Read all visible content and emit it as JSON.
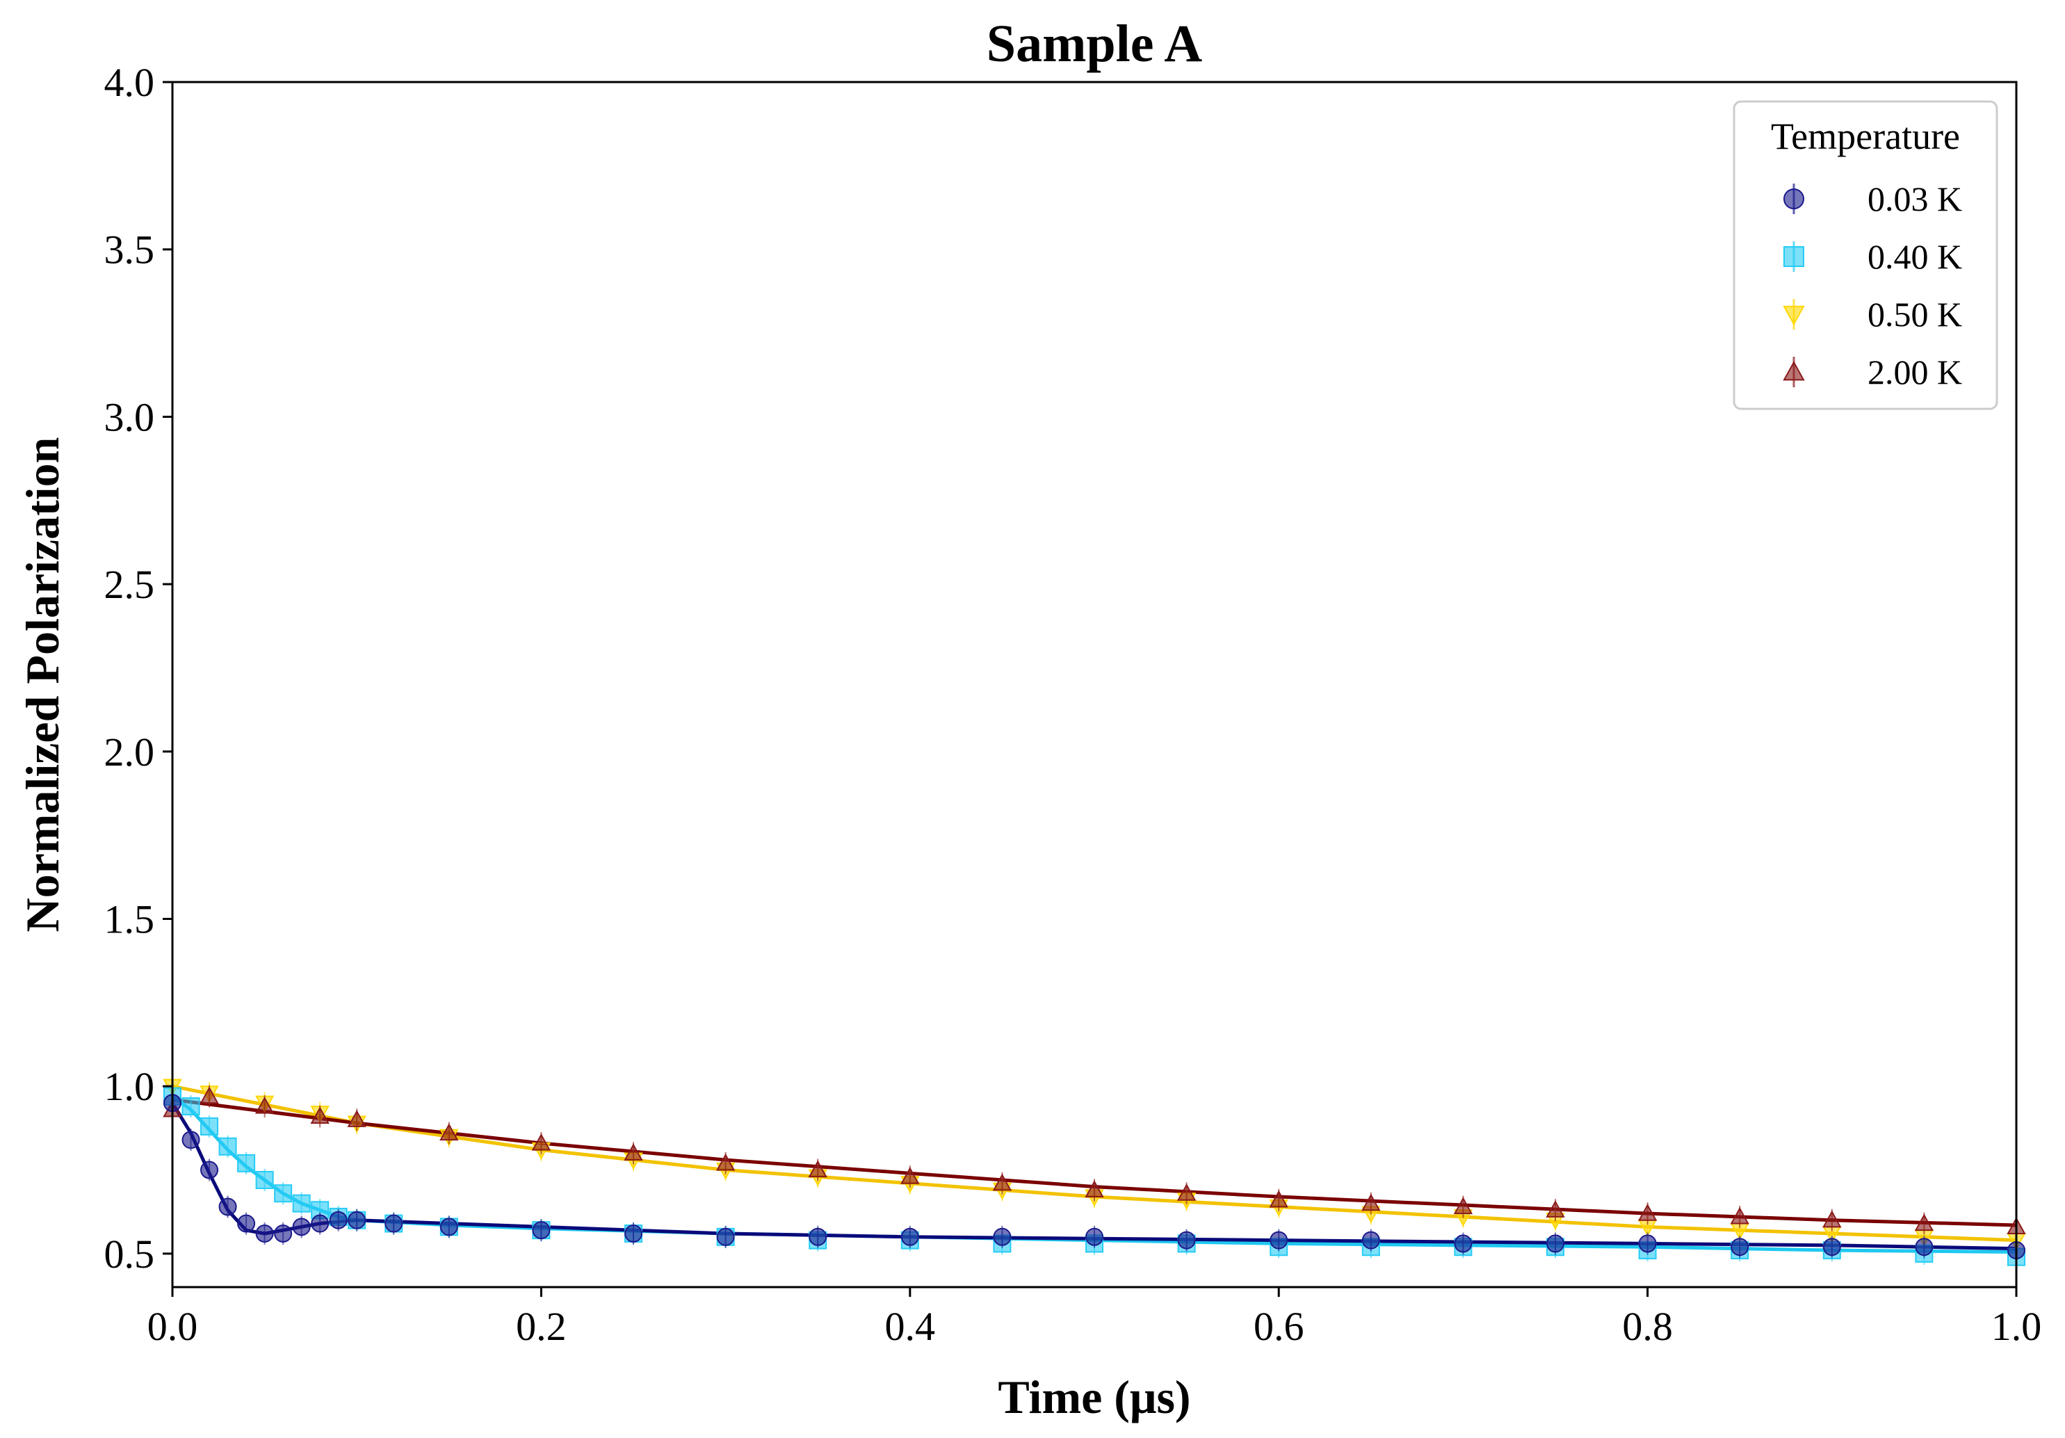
{
  "chart_data": {
    "type": "scatter",
    "title": "Sample A",
    "xlabel": "Time (μs)",
    "ylabel": "Normalized Polarization",
    "xlim": [
      0.0,
      1.0
    ],
    "ylim": [
      0.4,
      4.0
    ],
    "xticks": [
      0.0,
      0.2,
      0.4,
      0.6,
      0.8,
      1.0
    ],
    "xtick_labels": [
      "0.0",
      "0.2",
      "0.4",
      "0.6",
      "0.8",
      "1.0"
    ],
    "yticks": [
      0.5,
      1.0,
      1.5,
      2.0,
      2.5,
      3.0,
      3.5,
      4.0
    ],
    "ytick_labels": [
      "0.5",
      "1.0",
      "1.5",
      "2.0",
      "2.5",
      "3.0",
      "3.5",
      "4.0"
    ],
    "grid": false,
    "legend": {
      "title": "Temperature",
      "placement": "top-right"
    },
    "series": [
      {
        "name": "0.03 K",
        "marker": "circle",
        "color": "#1a1a8c",
        "fit_color": "#0a0a7a",
        "x": [
          0.0,
          0.01,
          0.02,
          0.03,
          0.04,
          0.05,
          0.06,
          0.07,
          0.08,
          0.09,
          0.1,
          0.12,
          0.15,
          0.2,
          0.25,
          0.3,
          0.35,
          0.4,
          0.45,
          0.5,
          0.55,
          0.6,
          0.65,
          0.7,
          0.75,
          0.8,
          0.85,
          0.9,
          0.95,
          1.0
        ],
        "y": [
          0.95,
          0.84,
          0.75,
          0.64,
          0.59,
          0.56,
          0.56,
          0.58,
          0.59,
          0.6,
          0.6,
          0.59,
          0.58,
          0.57,
          0.56,
          0.55,
          0.55,
          0.55,
          0.55,
          0.55,
          0.54,
          0.54,
          0.54,
          0.53,
          0.53,
          0.53,
          0.52,
          0.52,
          0.52,
          0.51
        ],
        "fit_x": [
          0.0,
          0.01,
          0.02,
          0.03,
          0.04,
          0.05,
          0.06,
          0.08,
          0.1,
          0.15,
          0.2,
          0.3,
          0.4,
          0.5,
          0.6,
          0.7,
          0.8,
          0.9,
          1.0
        ],
        "fit_y": [
          0.95,
          0.86,
          0.74,
          0.63,
          0.57,
          0.56,
          0.57,
          0.59,
          0.6,
          0.59,
          0.58,
          0.56,
          0.55,
          0.545,
          0.54,
          0.535,
          0.53,
          0.525,
          0.515
        ]
      },
      {
        "name": "0.40 K",
        "marker": "square",
        "color": "#27ccf5",
        "fit_color": "#1fc8f0",
        "x": [
          0.0,
          0.01,
          0.02,
          0.03,
          0.04,
          0.05,
          0.06,
          0.07,
          0.08,
          0.09,
          0.1,
          0.12,
          0.15,
          0.2,
          0.25,
          0.3,
          0.35,
          0.4,
          0.45,
          0.5,
          0.55,
          0.6,
          0.65,
          0.7,
          0.75,
          0.8,
          0.85,
          0.9,
          0.95,
          1.0
        ],
        "y": [
          0.97,
          0.94,
          0.88,
          0.82,
          0.77,
          0.72,
          0.68,
          0.65,
          0.63,
          0.61,
          0.6,
          0.59,
          0.58,
          0.57,
          0.56,
          0.55,
          0.54,
          0.54,
          0.53,
          0.53,
          0.53,
          0.52,
          0.52,
          0.52,
          0.52,
          0.51,
          0.51,
          0.51,
          0.5,
          0.49
        ],
        "fit_x": [
          0.0,
          0.01,
          0.02,
          0.03,
          0.04,
          0.05,
          0.06,
          0.07,
          0.08,
          0.09,
          0.1,
          0.15,
          0.2,
          0.3,
          0.4,
          0.5,
          0.6,
          0.7,
          0.8,
          0.9,
          1.0
        ],
        "fit_y": [
          0.97,
          0.93,
          0.87,
          0.81,
          0.76,
          0.72,
          0.68,
          0.65,
          0.63,
          0.61,
          0.6,
          0.585,
          0.575,
          0.56,
          0.55,
          0.54,
          0.53,
          0.525,
          0.52,
          0.51,
          0.505
        ]
      },
      {
        "name": "0.50 K",
        "marker": "triangle-down",
        "color": "#ffd700",
        "fit_color": "#f2c200",
        "x": [
          0.0,
          0.02,
          0.05,
          0.08,
          0.1,
          0.15,
          0.2,
          0.25,
          0.3,
          0.35,
          0.4,
          0.45,
          0.5,
          0.55,
          0.6,
          0.65,
          0.7,
          0.75,
          0.8,
          0.85,
          0.9,
          0.95,
          1.0
        ],
        "y": [
          1.0,
          0.98,
          0.95,
          0.92,
          0.89,
          0.85,
          0.81,
          0.78,
          0.75,
          0.73,
          0.71,
          0.69,
          0.67,
          0.66,
          0.64,
          0.62,
          0.61,
          0.6,
          0.58,
          0.57,
          0.56,
          0.55,
          0.54
        ],
        "fit_x": [
          0.0,
          0.1,
          0.2,
          0.3,
          0.4,
          0.5,
          0.6,
          0.7,
          0.8,
          0.9,
          1.0
        ],
        "fit_y": [
          1.0,
          0.89,
          0.81,
          0.75,
          0.71,
          0.67,
          0.64,
          0.61,
          0.58,
          0.56,
          0.54
        ]
      },
      {
        "name": "2.00 K",
        "marker": "triangle-up",
        "color": "#8b1a1a",
        "fit_color": "#7a0000",
        "x": [
          0.0,
          0.02,
          0.05,
          0.08,
          0.1,
          0.15,
          0.2,
          0.25,
          0.3,
          0.35,
          0.4,
          0.45,
          0.5,
          0.55,
          0.6,
          0.65,
          0.7,
          0.75,
          0.8,
          0.85,
          0.9,
          0.95,
          1.0
        ],
        "y": [
          0.93,
          0.97,
          0.94,
          0.91,
          0.9,
          0.86,
          0.83,
          0.8,
          0.77,
          0.75,
          0.73,
          0.71,
          0.69,
          0.68,
          0.66,
          0.65,
          0.64,
          0.63,
          0.62,
          0.61,
          0.6,
          0.59,
          0.58
        ],
        "fit_x": [
          0.0,
          0.1,
          0.2,
          0.3,
          0.4,
          0.5,
          0.6,
          0.7,
          0.8,
          0.9,
          1.0
        ],
        "fit_y": [
          0.96,
          0.89,
          0.83,
          0.78,
          0.74,
          0.7,
          0.67,
          0.645,
          0.62,
          0.6,
          0.585
        ]
      }
    ]
  }
}
